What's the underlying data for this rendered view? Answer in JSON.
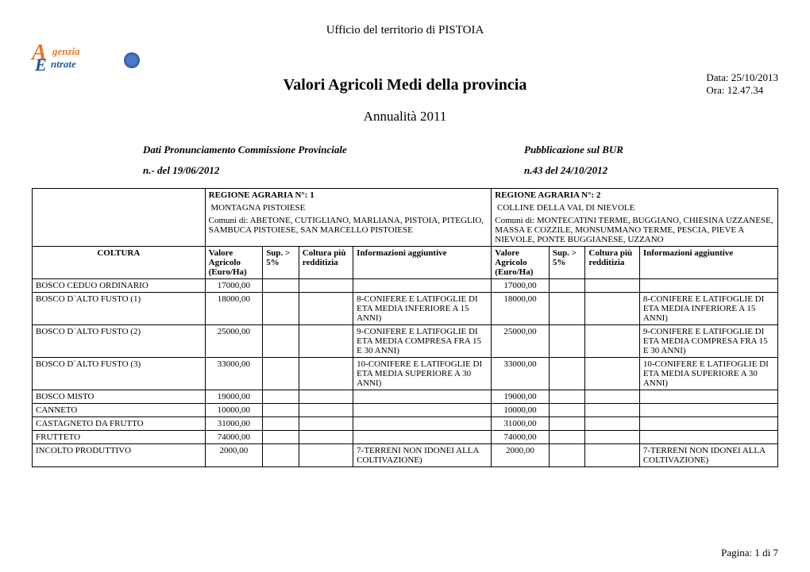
{
  "header": {
    "office": "Ufficio del territorio di  PISTOIA",
    "date_label": "Data: 25/10/2013",
    "time_label": "Ora: 12.47.34",
    "title": "Valori Agricoli Medi della provincia",
    "subtitle": "Annualità  2011"
  },
  "logo": {
    "text_top": "genzia",
    "text_bottom": "ntrate"
  },
  "meta": {
    "left_label": "Dati Pronunciamento Commissione Provinciale",
    "right_label": "Pubblicazione sul BUR",
    "left_value": "n.- del  19/06/2012",
    "right_value": "n.43  del 24/10/2012"
  },
  "regions": {
    "r1_header": "REGIONE AGRARIA N°:  1",
    "r1_name": "MONTAGNA PISTOIESE",
    "r1_comuni": "Comuni di: ABETONE, CUTIGLIANO, MARLIANA, PISTOIA, PITEGLIO, SAMBUCA PISTOIESE, SAN MARCELLO PISTOIESE",
    "r2_header": "REGIONE AGRARIA N°: 2",
    "r2_name": "COLLINE DELLA VAL DI NIEVOLE",
    "r2_comuni": "Comuni di: MONTECATINI TERME, BUGGIANO, CHIESINA UZZANESE, MASSA E COZZILE, MONSUMMANO TERME, PESCIA, PIEVE A NIEVOLE, PONTE BUGGIANESE, UZZANO"
  },
  "columns": {
    "coltura": "COLTURA",
    "valore": "Valore Agricolo (Euro/Ha)",
    "sup": "Sup. > 5%",
    "redditizia": "Coltura più redditizia",
    "info": "Informazioni aggiuntive"
  },
  "rows": [
    {
      "coltura": "BOSCO CEDUO ORDINARIO",
      "v1": "17000,00",
      "i1": "",
      "v2": "17000,00",
      "i2": ""
    },
    {
      "coltura": "BOSCO D`ALTO FUSTO (1)",
      "v1": "18000,00",
      "i1": "8-CONIFERE E LATIFOGLIE DI ETA MEDIA INFERIORE A 15 ANNI)",
      "v2": "18000,00",
      "i2": "8-CONIFERE E LATIFOGLIE DI ETA MEDIA INFERIORE A 15 ANNI)"
    },
    {
      "coltura": "BOSCO D`ALTO FUSTO (2)",
      "v1": "25000,00",
      "i1": "9-CONIFERE E LATIFOGLIE DI ETA MEDIA COMPRESA FRA 15 E 30 ANNI)",
      "v2": "25000,00",
      "i2": "9-CONIFERE E LATIFOGLIE DI ETA MEDIA COMPRESA FRA 15 E 30 ANNI)"
    },
    {
      "coltura": "BOSCO D`ALTO FUSTO (3)",
      "v1": "33000,00",
      "i1": "10-CONIFERE E LATIFOGLIE DI ETA MEDIA SUPERIORE A 30 ANNI)",
      "v2": "33000,00",
      "i2": "10-CONIFERE E LATIFOGLIE DI ETA MEDIA SUPERIORE A 30 ANNI)"
    },
    {
      "coltura": "BOSCO MISTO",
      "v1": "19000,00",
      "i1": "",
      "v2": "19000,00",
      "i2": ""
    },
    {
      "coltura": "CANNETO",
      "v1": "10000,00",
      "i1": "",
      "v2": "10000,00",
      "i2": ""
    },
    {
      "coltura": "CASTAGNETO DA FRUTTO",
      "v1": "31000,00",
      "i1": "",
      "v2": "31000,00",
      "i2": ""
    },
    {
      "coltura": "FRUTTETO",
      "v1": "74000,00",
      "i1": "",
      "v2": "74000,00",
      "i2": ""
    },
    {
      "coltura": "INCOLTO PRODUTTIVO",
      "v1": "2000,00",
      "i1": "7-TERRENI NON IDONEI ALLA COLTIVAZIONE)",
      "v2": "2000,00",
      "i2": "7-TERRENI NON IDONEI ALLA COLTIVAZIONE)"
    }
  ],
  "footer": {
    "page": "Pagina: 1 di 7"
  },
  "colors": {
    "orange": "#e87722",
    "blue": "#1e5b9e",
    "text": "#000000",
    "background": "#ffffff",
    "border": "#000000"
  },
  "typography": {
    "body_font": "Times New Roman",
    "title_size_pt": 20,
    "subtitle_size_pt": 17,
    "meta_size_pt": 13,
    "table_size_pt": 11
  }
}
